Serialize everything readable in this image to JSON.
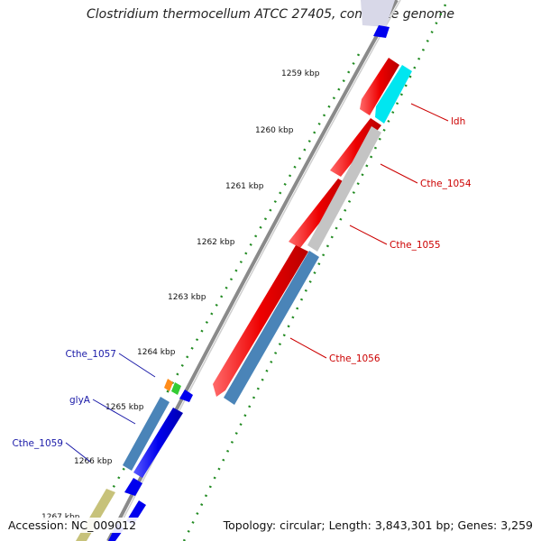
{
  "title": "Clostridium thermocellum ATCC 27405, complete genome",
  "footer": {
    "accession": "Accession: NC_009012",
    "summary": "Topology: circular; Length: 3,843,301 bp; Genes: 3,259"
  },
  "ticks": [
    "1259 kbp",
    "1260 kbp",
    "1261 kbp",
    "1262 kbp",
    "1263 kbp",
    "1264 kbp",
    "1265 kbp",
    "1266 kbp",
    "1267 kbp"
  ],
  "colors": {
    "forward_cds": "#0000ee",
    "reverse_cds": "#ee0000",
    "steelblue_cds": "#4a84b8",
    "grey_cds": "#c4c4c4",
    "cyan_cds": "#00e6f0",
    "olive_cds": "#c7c27a",
    "tick_dots": "#228b22",
    "backbone": "#8a8a8a",
    "label_forward": "#1a1aa8",
    "label_reverse": "#cc0000"
  },
  "labels_right": [
    {
      "text": "ldh"
    },
    {
      "text": "Cthe_1054"
    },
    {
      "text": "Cthe_1055"
    },
    {
      "text": "Cthe_1056"
    }
  ],
  "labels_left": [
    {
      "text": "Cthe_1057"
    },
    {
      "text": "glyA"
    },
    {
      "text": "Cthe_1059"
    }
  ]
}
